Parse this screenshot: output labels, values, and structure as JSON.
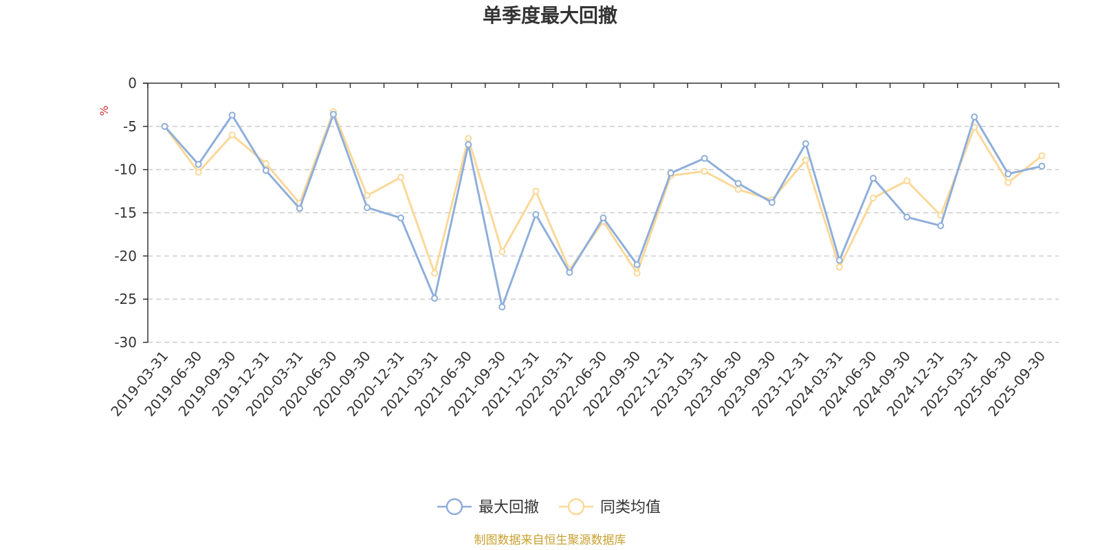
{
  "chart_data": {
    "type": "line",
    "title": "单季度最大回撤",
    "ylabel": "%",
    "ylim": [
      -30,
      0
    ],
    "yticks": [
      0,
      -5,
      -10,
      -15,
      -20,
      -25,
      -30
    ],
    "grid": true,
    "legend_position": "bottom-center",
    "categories": [
      "2019-03-31",
      "2019-06-30",
      "2019-09-30",
      "2019-12-31",
      "2020-03-31",
      "2020-06-30",
      "2020-09-30",
      "2020-12-31",
      "2021-03-31",
      "2021-06-30",
      "2021-09-30",
      "2021-12-31",
      "2022-03-31",
      "2022-06-30",
      "2022-09-30",
      "2022-12-31",
      "2023-03-31",
      "2023-06-30",
      "2023-09-30",
      "2023-12-31",
      "2024-03-31",
      "2024-06-30",
      "2024-09-30",
      "2024-12-31",
      "2025-03-31",
      "2025-06-30",
      "2025-09-30"
    ],
    "series": [
      {
        "name": "最大回撤",
        "color": "#8eaedb",
        "values": [
          -5.0,
          -9.4,
          -3.7,
          -10.1,
          -14.5,
          -3.6,
          -14.4,
          -15.6,
          -24.9,
          -7.1,
          -25.9,
          -15.2,
          -21.9,
          -15.6,
          -21.0,
          -10.4,
          -8.7,
          -11.6,
          -13.8,
          -7.0,
          -20.5,
          -11.0,
          -15.5,
          -16.5,
          -3.9,
          -10.5,
          -9.6
        ]
      },
      {
        "name": "同类均值",
        "color": "#fbd898",
        "values": [
          -5.0,
          -10.3,
          -6.0,
          -9.3,
          -13.9,
          -3.3,
          -13.0,
          -10.9,
          -22.0,
          -6.4,
          -19.5,
          -12.5,
          -21.6,
          -16.0,
          -22.0,
          -10.7,
          -10.2,
          -12.3,
          -13.5,
          -8.9,
          -21.3,
          -13.3,
          -11.3,
          -15.3,
          -5.1,
          -11.5,
          -8.4
        ]
      }
    ]
  },
  "source_text": "制图数据来自恒生聚源数据库"
}
